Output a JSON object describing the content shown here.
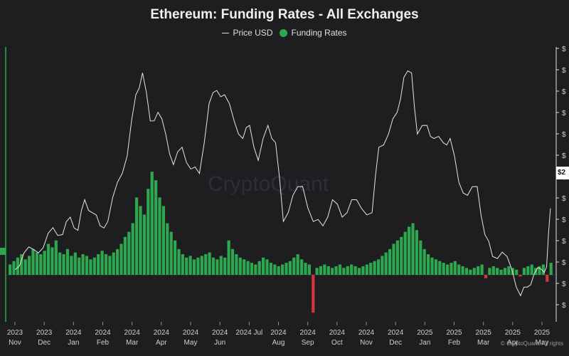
{
  "title": "Ethereum: Funding Rates - All Exchanges",
  "legend": {
    "price": "Price USD",
    "funding": "Funding Rates"
  },
  "watermark": "CryptoQuant",
  "copyright": "© CryptoQuant. All rights",
  "price_badge": "$2",
  "colors": {
    "background": "#1e1e20",
    "positive": "#2ea84f",
    "negative": "#d0363b",
    "price": "#e6e6e6",
    "axis_accent": "#2ea84f"
  },
  "chart_data": {
    "type": "bar",
    "x_ticks": [
      {
        "year": "2023",
        "month": "Nov"
      },
      {
        "year": "2023",
        "month": "Dec"
      },
      {
        "year": "2024",
        "month": "Jan"
      },
      {
        "year": "2024",
        "month": "Feb"
      },
      {
        "year": "2024",
        "month": "Mar"
      },
      {
        "year": "2024",
        "month": "Apr"
      },
      {
        "year": "2024",
        "month": "May"
      },
      {
        "year": "2024",
        "month": "Jun"
      },
      {
        "year": "2024 Jul",
        "month": ""
      },
      {
        "year": "2024",
        "month": "Aug"
      },
      {
        "year": "2024",
        "month": "Sep"
      },
      {
        "year": "2024",
        "month": "Oct"
      },
      {
        "year": "2024",
        "month": "Nov"
      },
      {
        "year": "2024",
        "month": "Dec"
      },
      {
        "year": "2025",
        "month": "Jan"
      },
      {
        "year": "2025",
        "month": "Feb"
      },
      {
        "year": "2025",
        "month": "Mar"
      },
      {
        "year": "2025",
        "month": "Apr"
      },
      {
        "year": "2025",
        "month": "May"
      }
    ],
    "y_right_ticks": [
      "$",
      "$",
      "$",
      "$",
      "$",
      "$",
      "$",
      "$",
      "$",
      "$",
      "$",
      "$",
      "$"
    ],
    "series": [
      {
        "name": "Price USD",
        "type": "line",
        "values": [
          [
            "2023-11-01",
            1800
          ],
          [
            "2023-11-10",
            1990
          ],
          [
            "2023-11-20",
            2030
          ],
          [
            "2023-11-30",
            2050
          ],
          [
            "2023-12-10",
            2280
          ],
          [
            "2023-12-20",
            2200
          ],
          [
            "2023-12-28",
            2400
          ],
          [
            "2024-01-05",
            2250
          ],
          [
            "2024-01-12",
            2600
          ],
          [
            "2024-01-20",
            2450
          ],
          [
            "2024-01-28",
            2300
          ],
          [
            "2024-02-05",
            2350
          ],
          [
            "2024-02-15",
            2800
          ],
          [
            "2024-02-25",
            3100
          ],
          [
            "2024-03-05",
            3800
          ],
          [
            "2024-03-12",
            4050
          ],
          [
            "2024-03-20",
            3500
          ],
          [
            "2024-03-28",
            3600
          ],
          [
            "2024-04-05",
            3350
          ],
          [
            "2024-04-13",
            3000
          ],
          [
            "2024-04-22",
            3200
          ],
          [
            "2024-05-01",
            2950
          ],
          [
            "2024-05-10",
            2900
          ],
          [
            "2024-05-20",
            3700
          ],
          [
            "2024-05-28",
            3850
          ],
          [
            "2024-06-05",
            3800
          ],
          [
            "2024-06-15",
            3500
          ],
          [
            "2024-06-24",
            3300
          ],
          [
            "2024-07-01",
            3450
          ],
          [
            "2024-07-10",
            3050
          ],
          [
            "2024-07-20",
            3450
          ],
          [
            "2024-07-28",
            3250
          ],
          [
            "2024-08-05",
            2350
          ],
          [
            "2024-08-15",
            2650
          ],
          [
            "2024-08-25",
            2750
          ],
          [
            "2024-09-05",
            2350
          ],
          [
            "2024-09-15",
            2300
          ],
          [
            "2024-09-25",
            2600
          ],
          [
            "2024-10-05",
            2400
          ],
          [
            "2024-10-15",
            2600
          ],
          [
            "2024-10-25",
            2500
          ],
          [
            "2024-11-05",
            2450
          ],
          [
            "2024-11-12",
            3200
          ],
          [
            "2024-11-22",
            3350
          ],
          [
            "2024-12-01",
            3600
          ],
          [
            "2024-12-08",
            4000
          ],
          [
            "2024-12-16",
            4050
          ],
          [
            "2024-12-22",
            3350
          ],
          [
            "2025-01-01",
            3450
          ],
          [
            "2025-01-08",
            3300
          ],
          [
            "2025-01-18",
            3250
          ],
          [
            "2025-01-25",
            3300
          ],
          [
            "2025-02-03",
            2800
          ],
          [
            "2025-02-12",
            2650
          ],
          [
            "2025-02-22",
            2750
          ],
          [
            "2025-03-02",
            2200
          ],
          [
            "2025-03-10",
            1950
          ],
          [
            "2025-03-20",
            2000
          ],
          [
            "2025-03-30",
            1800
          ],
          [
            "2025-04-08",
            1500
          ],
          [
            "2025-04-15",
            1600
          ],
          [
            "2025-04-22",
            1750
          ],
          [
            "2025-04-30",
            1800
          ],
          [
            "2025-05-05",
            1830
          ],
          [
            "2025-05-09",
            2500
          ]
        ]
      },
      {
        "name": "Funding Rates",
        "type": "bar",
        "values": [
          0.006,
          0.008,
          0.01,
          0.012,
          0.009,
          0.011,
          0.015,
          0.013,
          0.012,
          0.014,
          0.018,
          0.016,
          0.02,
          0.013,
          0.012,
          0.015,
          0.011,
          0.013,
          0.01,
          0.012,
          0.011,
          0.009,
          0.01,
          0.012,
          0.014,
          0.012,
          0.011,
          0.013,
          0.015,
          0.018,
          0.022,
          0.025,
          0.03,
          0.045,
          0.04,
          0.035,
          0.05,
          0.06,
          0.055,
          0.045,
          0.04,
          0.03,
          0.025,
          0.02,
          0.015,
          0.012,
          0.01,
          0.011,
          0.009,
          0.01,
          0.011,
          0.012,
          0.013,
          0.01,
          0.009,
          0.011,
          0.01,
          0.02,
          0.015,
          0.012,
          0.01,
          0.009,
          0.008,
          0.007,
          0.006,
          0.008,
          0.01,
          0.009,
          0.007,
          0.006,
          0.005,
          0.006,
          0.007,
          0.008,
          0.01,
          0.012,
          0.009,
          0.007,
          0.006,
          -0.022,
          0.004,
          0.005,
          0.006,
          0.005,
          0.004,
          0.005,
          0.006,
          0.004,
          0.005,
          0.006,
          0.005,
          0.004,
          0.005,
          0.006,
          0.007,
          0.008,
          0.009,
          0.011,
          0.013,
          0.015,
          0.018,
          0.02,
          0.022,
          0.025,
          0.028,
          0.03,
          0.026,
          0.02,
          0.015,
          0.012,
          0.01,
          0.009,
          0.008,
          0.007,
          0.006,
          0.007,
          0.008,
          0.006,
          0.005,
          0.004,
          0.003,
          0.004,
          0.005,
          0.006,
          -0.002,
          0.004,
          0.005,
          0.004,
          0.003,
          0.004,
          0.005,
          0.004,
          0.003,
          -0.001,
          0.004,
          0.005,
          0.006,
          0.004,
          0.005,
          0.006,
          -0.004,
          0.007
        ]
      }
    ],
    "y_funding_range": [
      -0.025,
      0.125
    ],
    "y_price_range": [
      1300,
      4200
    ],
    "grid": false,
    "legend_position": "top-center"
  }
}
